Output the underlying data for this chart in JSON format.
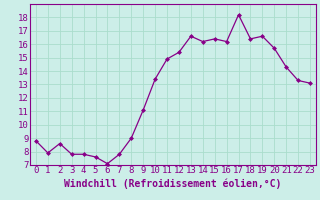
{
  "x": [
    0,
    1,
    2,
    3,
    4,
    5,
    6,
    7,
    8,
    9,
    10,
    11,
    12,
    13,
    14,
    15,
    16,
    17,
    18,
    19,
    20,
    21,
    22,
    23
  ],
  "y": [
    8.8,
    7.9,
    8.6,
    7.8,
    7.8,
    7.6,
    7.1,
    7.8,
    9.0,
    11.1,
    13.4,
    14.9,
    15.4,
    16.6,
    16.2,
    16.4,
    16.2,
    18.2,
    16.4,
    16.6,
    15.7,
    14.3,
    13.3,
    13.1
  ],
  "line_color": "#880088",
  "marker": "D",
  "marker_size": 2.0,
  "bg_color": "#cceee8",
  "grid_color": "#aaddcc",
  "xlabel": "Windchill (Refroidissement éolien,°C)",
  "xlim": [
    -0.5,
    23.5
  ],
  "ylim": [
    7,
    19
  ],
  "yticks": [
    7,
    8,
    9,
    10,
    11,
    12,
    13,
    14,
    15,
    16,
    17,
    18
  ],
  "xticks": [
    0,
    1,
    2,
    3,
    4,
    5,
    6,
    7,
    8,
    9,
    10,
    11,
    12,
    13,
    14,
    15,
    16,
    17,
    18,
    19,
    20,
    21,
    22,
    23
  ],
  "font_color": "#880088",
  "tick_fontsize": 6.5,
  "xlabel_fontsize": 7.0
}
